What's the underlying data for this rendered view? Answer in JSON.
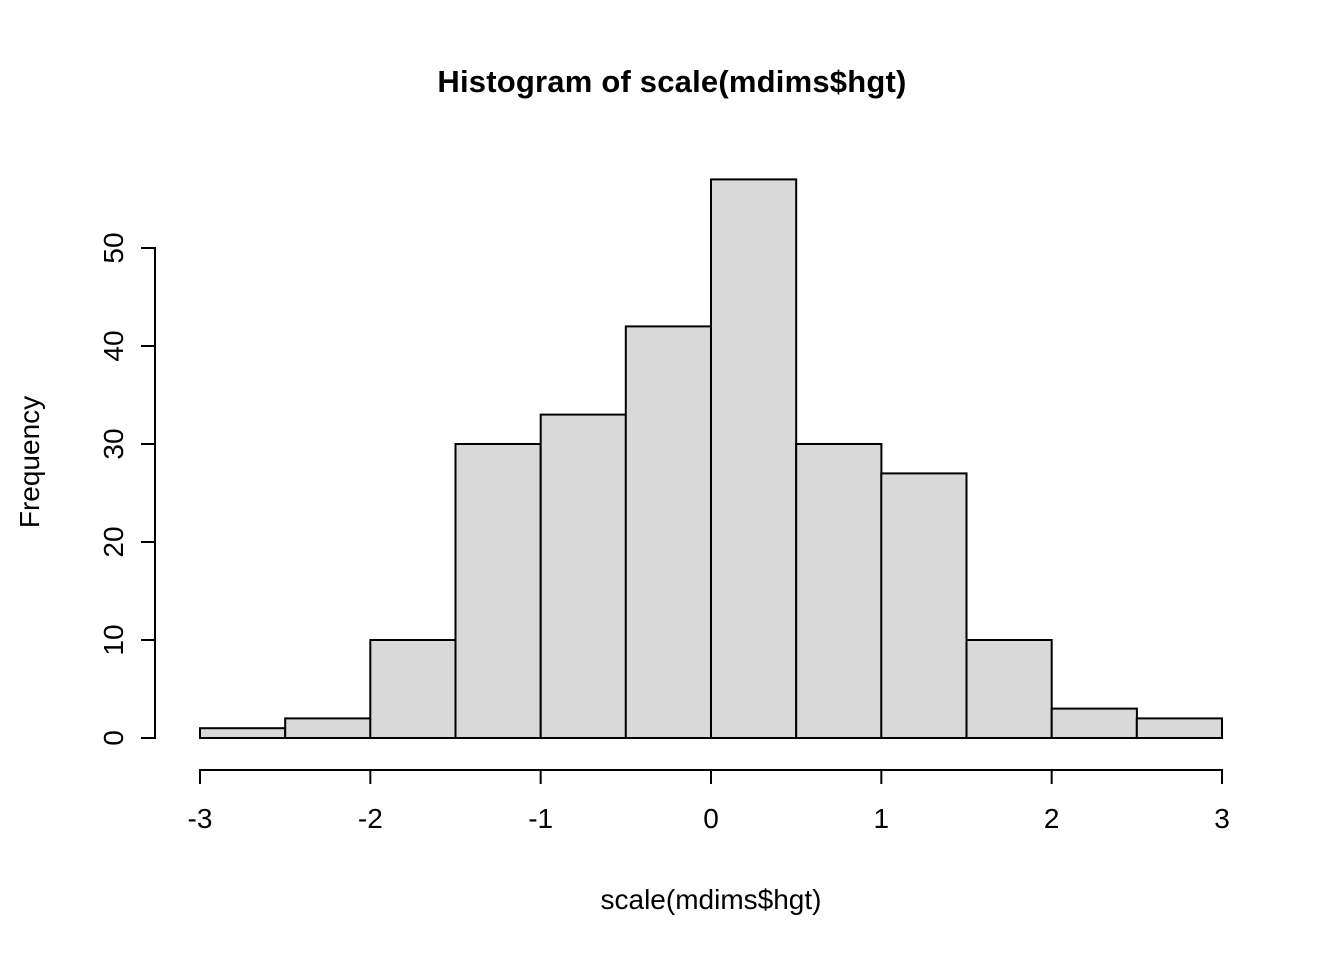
{
  "chart_data": {
    "type": "bar",
    "title": "Histogram of scale(mdims$hgt)",
    "xlabel": "scale(mdims$hgt)",
    "ylabel": "Frequency",
    "bin_edges": [
      -3,
      -2.5,
      -2,
      -1.5,
      -1,
      -0.5,
      0,
      0.5,
      1,
      1.5,
      2,
      2.5,
      3
    ],
    "counts": [
      1,
      2,
      10,
      30,
      33,
      42,
      57,
      30,
      27,
      10,
      3,
      2
    ],
    "x_ticks": [
      -3,
      -2,
      -1,
      0,
      1,
      2,
      3
    ],
    "y_ticks": [
      0,
      10,
      20,
      30,
      40,
      50
    ],
    "xlim": [
      -3,
      3
    ],
    "ylim": [
      0,
      57
    ],
    "bar_fill": "#d9d9d9",
    "bar_stroke": "#000000",
    "axis_color": "#000000",
    "background": "#ffffff",
    "grid": false,
    "legend": false
  }
}
